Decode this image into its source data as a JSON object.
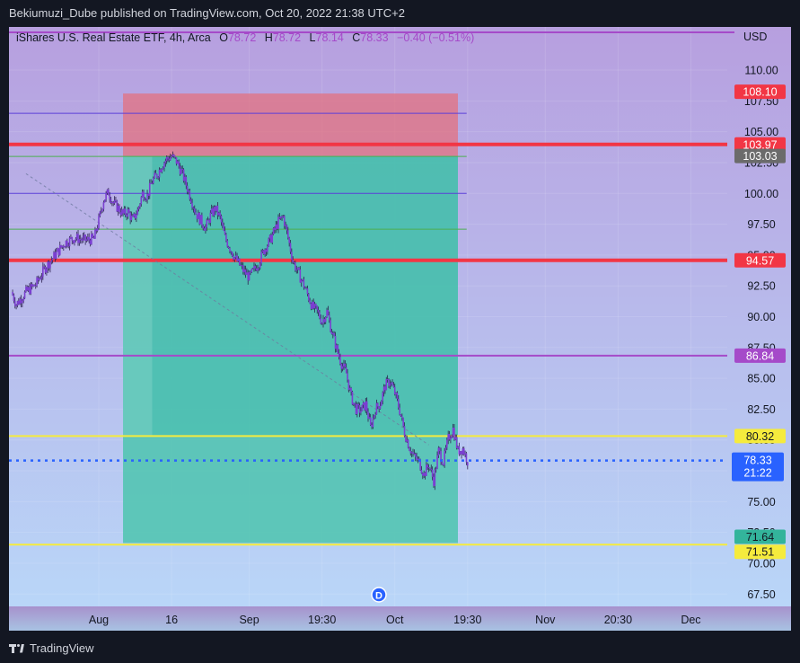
{
  "header": {
    "published_by": "Bekiumuzi_Dube published on TradingView.com, Oct 20, 2022 21:38 UTC+2"
  },
  "legend": {
    "symbol": "iShares U.S. Real Estate ETF, 4h, Arca",
    "o_label": "O",
    "o_value": "78.72",
    "h_label": "H",
    "h_value": "78.72",
    "l_label": "L",
    "l_value": "78.14",
    "c_label": "C",
    "c_value": "78.33",
    "change": "−0.40 (−0.51%)"
  },
  "footer": {
    "brand": "TradingView",
    "event_marker": "D"
  },
  "colors": {
    "background_top": "#b79fdf",
    "background_bottom": "#b9d6f8",
    "candle": "#7b3fd1",
    "stop_zone": "#e56f7b",
    "target_zone": "#3dbfa8",
    "red_line": "#f23645",
    "yellow_line": "#f5eb3d",
    "purple_line": "#a54ac9",
    "price_line": "#2962ff",
    "tag_dark": "#6b6b6b",
    "tag_green": "#33b49b"
  },
  "chart_data": {
    "type": "candlestick",
    "currency": "USD",
    "ylim": [
      66.5,
      113.5
    ],
    "y_ticks": [
      "67.50",
      "70.00",
      "72.50",
      "75.00",
      "77.50",
      "80.00",
      "82.50",
      "85.00",
      "87.50",
      "90.00",
      "92.50",
      "95.00",
      "97.50",
      "100.00",
      "102.50",
      "105.00",
      "107.50",
      "110.00"
    ],
    "x_ticks": [
      {
        "label": "Aug",
        "day": 0
      },
      {
        "label": "16",
        "day": 15
      },
      {
        "label": "Sep",
        "day": 31
      },
      {
        "label": "19:30",
        "day": 46
      },
      {
        "label": "Oct",
        "day": 61
      },
      {
        "label": "19:30",
        "day": 76
      },
      {
        "label": "Nov",
        "day": 92
      },
      {
        "label": "20:30",
        "day": 107
      },
      {
        "label": "Dec",
        "day": 122
      }
    ],
    "x_range_days": [
      -18.5,
      129.5
    ],
    "close_path": [
      [
        -18,
        92.0
      ],
      [
        -17,
        91.0
      ],
      [
        -15,
        92.0
      ],
      [
        -13,
        92.6
      ],
      [
        -11,
        94.0
      ],
      [
        -9,
        95.0
      ],
      [
        -7,
        96.0
      ],
      [
        -5,
        96.4
      ],
      [
        -3,
        96.2
      ],
      [
        -1,
        96.3
      ],
      [
        0,
        97.8
      ],
      [
        1,
        99.5
      ],
      [
        2,
        100.1
      ],
      [
        3,
        99.2
      ],
      [
        4,
        98.8
      ],
      [
        5,
        98.3
      ],
      [
        6,
        98.5
      ],
      [
        7,
        97.8
      ],
      [
        8,
        98.6
      ],
      [
        9,
        100.0
      ],
      [
        10,
        99.8
      ],
      [
        11,
        101.0
      ],
      [
        12,
        101.5
      ],
      [
        13,
        102.3
      ],
      [
        14,
        102.8
      ],
      [
        15,
        103.0
      ],
      [
        16,
        102.6
      ],
      [
        17,
        101.8
      ],
      [
        18,
        100.7
      ],
      [
        19,
        99.6
      ],
      [
        20,
        98.4
      ],
      [
        21,
        97.8
      ],
      [
        22,
        97.2
      ],
      [
        23,
        98.2
      ],
      [
        24,
        98.8
      ],
      [
        25,
        98.0
      ],
      [
        26,
        96.4
      ],
      [
        27,
        95.6
      ],
      [
        28,
        94.8
      ],
      [
        29,
        94.2
      ],
      [
        30,
        93.6
      ],
      [
        31,
        93.2
      ],
      [
        32,
        93.8
      ],
      [
        33,
        94.4
      ],
      [
        34,
        95.4
      ],
      [
        35,
        96.0
      ],
      [
        36,
        96.8
      ],
      [
        37,
        97.7
      ],
      [
        38,
        98.1
      ],
      [
        39,
        96.4
      ],
      [
        40,
        94.5
      ],
      [
        41,
        93.6
      ],
      [
        42,
        92.8
      ],
      [
        43,
        91.8
      ],
      [
        44,
        90.8
      ],
      [
        45,
        90.4
      ],
      [
        46,
        89.6
      ],
      [
        47,
        90.4
      ],
      [
        48,
        88.8
      ],
      [
        49,
        87.4
      ],
      [
        50,
        86.2
      ],
      [
        51,
        85.4
      ],
      [
        52,
        83.5
      ],
      [
        53,
        82.5
      ],
      [
        54,
        82.4
      ],
      [
        55,
        82.9
      ],
      [
        56,
        81.0
      ],
      [
        57,
        82.5
      ],
      [
        58,
        83.0
      ],
      [
        59,
        84.4
      ],
      [
        60,
        84.8
      ],
      [
        61,
        83.8
      ],
      [
        62,
        82.4
      ],
      [
        63,
        80.6
      ],
      [
        64,
        79.4
      ],
      [
        65,
        78.6
      ],
      [
        66,
        78.2
      ],
      [
        67,
        77.2
      ],
      [
        68,
        78.0
      ],
      [
        69,
        76.7
      ],
      [
        70,
        79.1
      ],
      [
        71,
        78.2
      ],
      [
        72,
        80.1
      ],
      [
        73,
        80.9
      ],
      [
        74,
        79.1
      ],
      [
        75,
        79.3
      ],
      [
        76,
        78.3
      ]
    ],
    "last_price": 78.33,
    "countdown": "21:22",
    "trendline": {
      "start": [
        -15,
        101.6
      ],
      "end": [
        68,
        79.6
      ]
    },
    "position": {
      "days": [
        5,
        74
      ],
      "entry": 103.03,
      "stop": 108.1,
      "target": 71.64,
      "stop_inner_day": 11
    },
    "levels": [
      {
        "value": 106.5,
        "color": "#5b3fd8",
        "width": 1,
        "label": ""
      },
      {
        "value": 103.97,
        "color": "#f23645",
        "width": 4,
        "label": "103.97"
      },
      {
        "value": 103.0,
        "color": "#4caf50",
        "width": 1,
        "label": ""
      },
      {
        "value": 100.0,
        "color": "#5b3fd8",
        "width": 1,
        "label": ""
      },
      {
        "value": 97.1,
        "color": "#4caf50",
        "width": 1,
        "label": ""
      },
      {
        "value": 94.57,
        "color": "#f23645",
        "width": 4,
        "label": "94.57"
      },
      {
        "value": 86.84,
        "color": "#a54ac9",
        "width": 2,
        "label": "86.84"
      },
      {
        "value": 80.32,
        "color": "#f5eb3d",
        "width": 2,
        "label": "80.32"
      },
      {
        "value": 71.51,
        "color": "#f5eb3d",
        "width": 2,
        "label": "71.51"
      }
    ],
    "price_tags": [
      {
        "value": 108.1,
        "label": "108.10",
        "bg": "#f23645",
        "fg": "#ffffff"
      },
      {
        "value": 103.97,
        "label": "103.97",
        "bg": "#f23645",
        "fg": "#ffffff"
      },
      {
        "value": 103.03,
        "label": "103.03",
        "bg": "#6b6b6b",
        "fg": "#ffffff"
      },
      {
        "value": 94.57,
        "label": "94.57",
        "bg": "#f23645",
        "fg": "#ffffff"
      },
      {
        "value": 86.84,
        "label": "86.84",
        "bg": "#a54ac9",
        "fg": "#ffffff"
      },
      {
        "value": 80.32,
        "label": "80.32",
        "bg": "#f5eb3d",
        "fg": "#131722"
      },
      {
        "value": 71.64,
        "label": "71.64",
        "bg": "#33b49b",
        "fg": "#131722"
      },
      {
        "value": 71.51,
        "label": "71.51",
        "bg": "#f5eb3d",
        "fg": "#131722"
      }
    ]
  }
}
